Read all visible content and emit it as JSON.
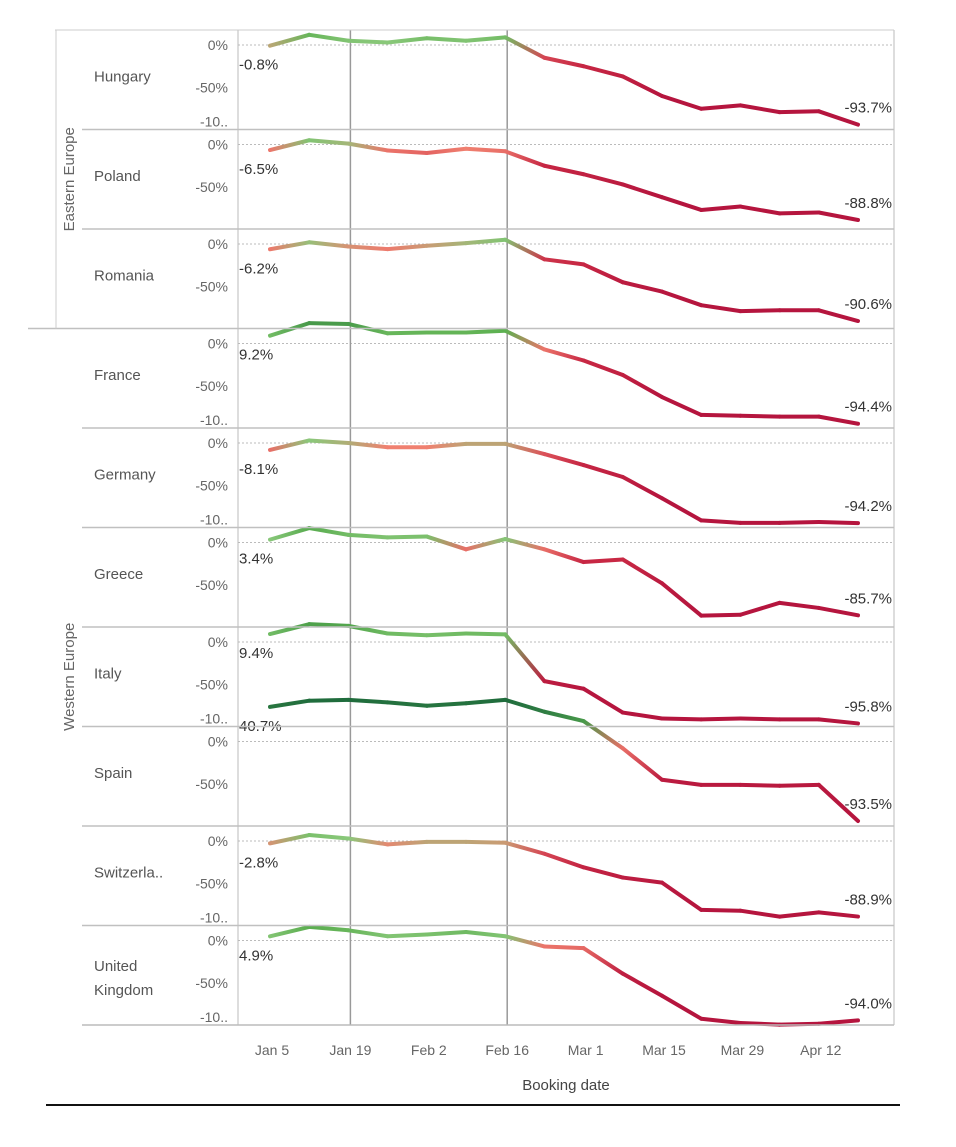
{
  "chart_data": {
    "type": "line",
    "xlabel": "Booking date",
    "x_ticks": [
      "Jan 5",
      "Jan 19",
      "Feb 2",
      "Feb 16",
      "Mar 1",
      "Mar 15",
      "Mar 29",
      "Apr 12"
    ],
    "x": [
      "Jan 5",
      "Jan 12",
      "Jan 19",
      "Jan 26",
      "Feb 2",
      "Feb 9",
      "Feb 16",
      "Feb 23",
      "Mar 1",
      "Mar 8",
      "Mar 15",
      "Mar 22",
      "Mar 29",
      "Apr 5",
      "Apr 12",
      "Apr 19"
    ],
    "reference_lines": [
      "Jan 19",
      "Feb 16"
    ],
    "y_unit": "%",
    "color_scale": {
      "low": "#b5153e",
      "mid": "#f08070",
      "high": "#1e6b3c"
    },
    "groups": [
      {
        "name": "Eastern Europe",
        "countries": [
          "Hungary",
          "Poland",
          "Romania"
        ]
      },
      {
        "name": "Western Europe",
        "countries": [
          "France",
          "Germany",
          "Greece",
          "Italy",
          "Spain",
          "Switzerla..",
          "United Kingdom"
        ]
      }
    ],
    "series": [
      {
        "name": "Hungary",
        "yticks": [
          "0%",
          "-50%",
          "-10.."
        ],
        "first_label": "-0.8%",
        "last_label": "-93.7%",
        "values": [
          -0.8,
          12,
          5,
          3,
          8,
          5,
          9,
          -15,
          -25,
          -37,
          -60,
          -75,
          -71,
          -79,
          -78,
          -93.7
        ]
      },
      {
        "name": "Poland",
        "yticks": [
          "0%",
          "-50%"
        ],
        "first_label": "-6.5%",
        "last_label": "-88.8%",
        "values": [
          -6.5,
          5,
          1,
          -7,
          -10,
          -5,
          -8,
          -25,
          -35,
          -47,
          -62,
          -77,
          -73,
          -81,
          -80,
          -88.8
        ]
      },
      {
        "name": "Romania",
        "yticks": [
          "0%",
          "-50%"
        ],
        "first_label": "-6.2%",
        "last_label": "-90.6%",
        "values": [
          -6.2,
          2,
          -3,
          -6,
          -2,
          1,
          5,
          -18,
          -24,
          -45,
          -56,
          -72,
          -79,
          -78,
          -78,
          -90.6
        ]
      },
      {
        "name": "France",
        "yticks": [
          "0%",
          "-50%",
          "-10.."
        ],
        "first_label": "9.2%",
        "last_label": "-94.4%",
        "values": [
          9.2,
          24,
          23,
          12,
          13,
          13,
          15,
          -7,
          -20,
          -37,
          -63,
          -84,
          -85,
          -86,
          -86,
          -94.4
        ]
      },
      {
        "name": "Germany",
        "yticks": [
          "0%",
          "-50%",
          "-10.."
        ],
        "first_label": "-8.1%",
        "last_label": "-94.2%",
        "values": [
          -8.1,
          3,
          0,
          -5,
          -5,
          -1,
          -1,
          -13,
          -26,
          -40,
          -65,
          -91,
          -94,
          -94,
          -93,
          -94.2
        ]
      },
      {
        "name": "Greece",
        "yticks": [
          "0%",
          "-50%"
        ],
        "first_label": "3.4%",
        "last_label": "-85.7%",
        "values": [
          3.4,
          17,
          9,
          6,
          7,
          -8,
          4,
          -8,
          -23,
          -20,
          -48,
          -86,
          -85,
          -71,
          -77,
          -85.7
        ]
      },
      {
        "name": "Italy",
        "yticks": [
          "0%",
          "-50%",
          "-10.."
        ],
        "first_label": "9.4%",
        "last_label": "-95.8%",
        "values": [
          9.4,
          21,
          19,
          10,
          8,
          10,
          9,
          -46,
          -55,
          -83,
          -90,
          -91,
          -90,
          -91,
          -91,
          -95.8
        ]
      },
      {
        "name": "Spain",
        "yticks": [
          "0%",
          "-50%"
        ],
        "first_label": "40.7%",
        "last_label": "-93.5%",
        "values": [
          40.7,
          48,
          49,
          46,
          42,
          45,
          49,
          35,
          24,
          -8,
          -45,
          -51,
          -51,
          -52,
          -51,
          -93.5
        ]
      },
      {
        "name": "Switzerla..",
        "yticks": [
          "0%",
          "-50%",
          "-10.."
        ],
        "first_label": "-2.8%",
        "last_label": "-88.9%",
        "values": [
          -2.8,
          7,
          3,
          -4,
          -1,
          -1,
          -2,
          -15,
          -31,
          -43,
          -49,
          -81,
          -82,
          -89,
          -84,
          -88.9
        ]
      },
      {
        "name": "United Kingdom",
        "yticks": [
          "0%",
          "-50%",
          "-10.."
        ],
        "first_label": "4.9%",
        "last_label": "-94.0%",
        "values": [
          4.9,
          16,
          12,
          5,
          7,
          10,
          5,
          -7,
          -9,
          -39,
          -65,
          -92,
          -97,
          -99,
          -98,
          -94.0
        ]
      }
    ]
  }
}
